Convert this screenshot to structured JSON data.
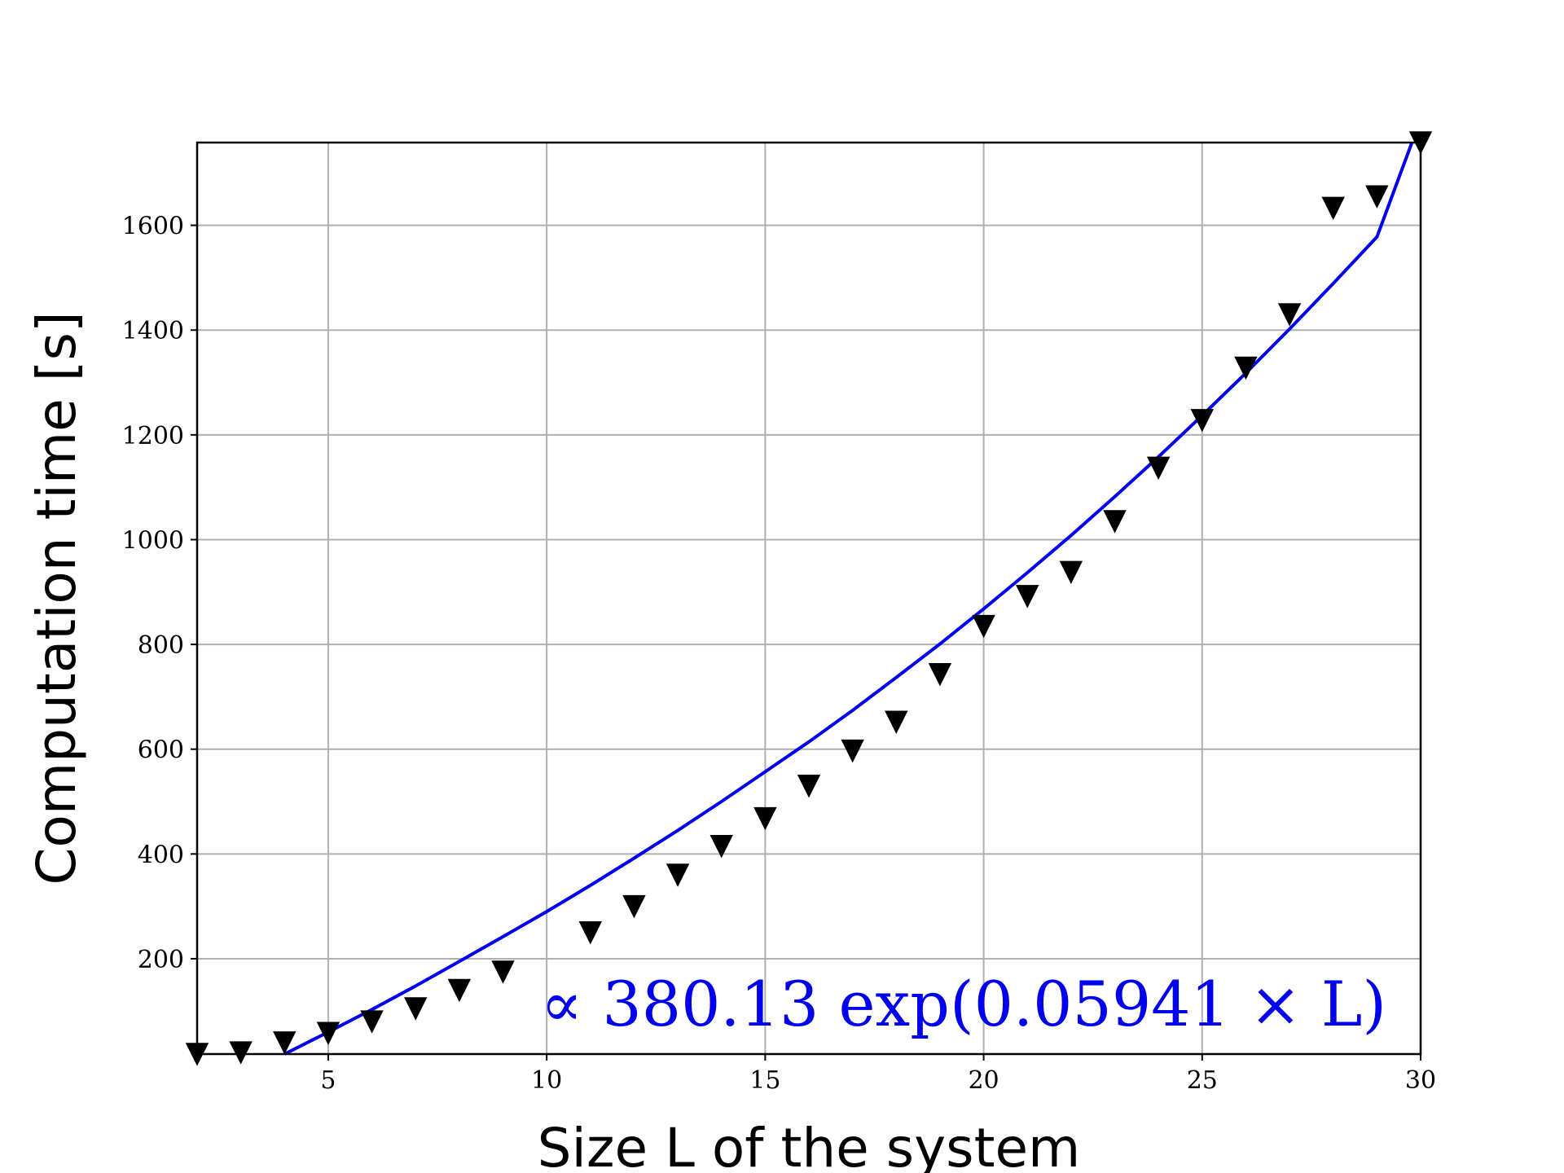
{
  "chart_data": {
    "type": "scatter",
    "title": "",
    "xlabel": "Size L of the system",
    "ylabel": "Computation time [s]",
    "xlim": [
      2,
      30
    ],
    "ylim": [
      18,
      1758
    ],
    "x_ticks": [
      5,
      10,
      15,
      20,
      25,
      30
    ],
    "y_ticks": [
      200,
      400,
      600,
      800,
      1000,
      1200,
      1400,
      1600
    ],
    "grid": true,
    "marker": "triangle-down",
    "marker_color": "#000000",
    "fit_color": "#0000ee",
    "series": [
      {
        "values_x": [
          2,
          3,
          4,
          5,
          6,
          7,
          8,
          9,
          11,
          12,
          13,
          14,
          15,
          16,
          17,
          18,
          19,
          20,
          21,
          22,
          23,
          24,
          25,
          26,
          27,
          28,
          29,
          30
        ],
        "values_y": [
          18,
          21,
          40,
          58,
          80,
          105,
          140,
          175,
          250,
          300,
          360,
          415,
          468,
          530,
          597,
          652,
          743,
          835,
          892,
          938,
          1035,
          1137,
          1228,
          1328,
          1430,
          1633,
          1655,
          1758
        ]
      }
    ],
    "fit_curve": {
      "x": [
        4,
        5,
        6,
        7,
        8,
        9,
        10,
        11,
        12,
        13,
        14,
        15,
        16,
        17,
        18,
        19,
        20,
        21,
        22,
        23,
        24,
        25,
        26,
        27,
        28,
        29,
        29.8
      ],
      "y": [
        18,
        60,
        103,
        148,
        195,
        242,
        290,
        340,
        392,
        445,
        500,
        557,
        614,
        674,
        737,
        801,
        868,
        937,
        1008,
        1082,
        1158,
        1237,
        1318,
        1402,
        1489,
        1578,
        1758
      ]
    },
    "annotation": "∝ 380.13 exp(0.05941 × L)"
  }
}
